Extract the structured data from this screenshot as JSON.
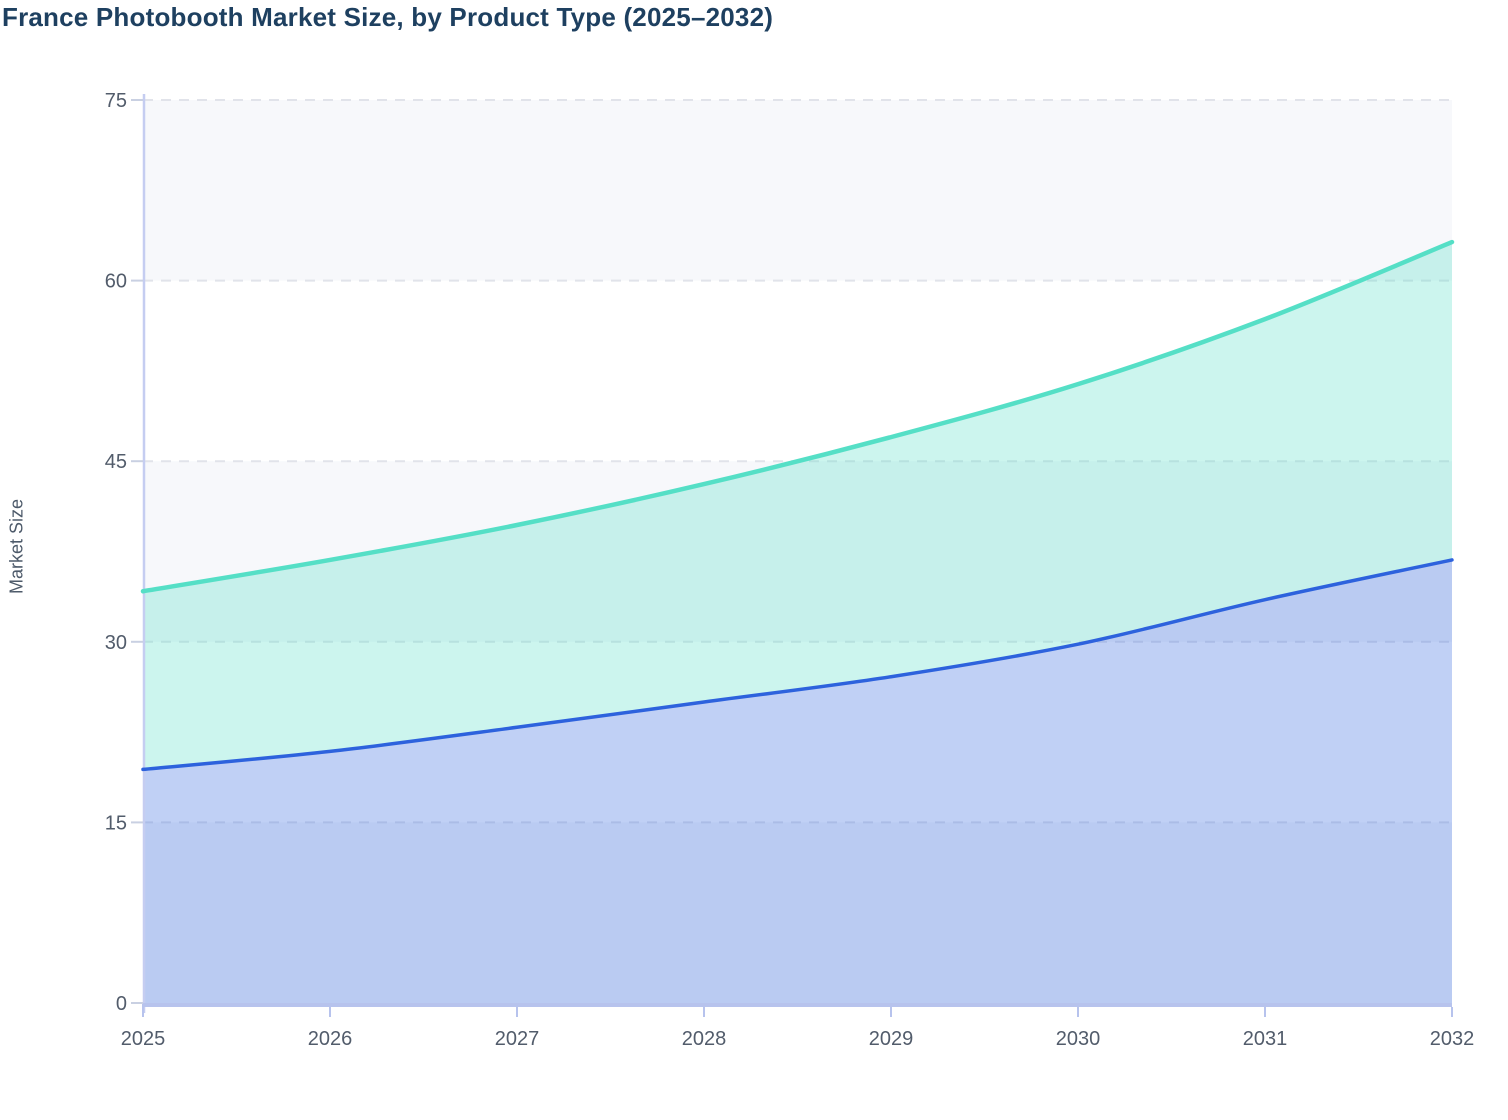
{
  "page": {
    "title": "France Photobooth Market Size, by Product Type (2025–2032)"
  },
  "chart_data": {
    "type": "area",
    "stacked": true,
    "smooth": true,
    "title": "France Photobooth Market Size, by Product Type (2025–2032)",
    "xlabel": "",
    "ylabel": "Market Size",
    "x": [
      2025,
      2026,
      2027,
      2028,
      2029,
      2030,
      2031,
      2032
    ],
    "x_tick_labels": [
      "2025",
      "2026",
      "2027",
      "2028",
      "2029",
      "2030",
      "2031",
      "2032"
    ],
    "y_ticks": [
      0,
      15,
      30,
      45,
      60,
      75
    ],
    "y_tick_labels": [
      "0",
      "15",
      "30",
      "45",
      "60",
      "75"
    ],
    "ylim": [
      0,
      75
    ],
    "legend": "none",
    "grid": "horizontal dashed gridlines, alternating background bands (gray band between 60-75, 30-45, 0-15)",
    "series": [
      {
        "id": "bottom-blue-series",
        "line_color": "#2d62dd",
        "fill_color": "rgba(45,98,221,0.30)",
        "values": [
          19.4,
          20.9,
          22.9,
          25.0,
          27.1,
          29.8,
          33.5,
          36.8
        ]
      },
      {
        "id": "top-teal-series",
        "line_color": "#55dfc6",
        "fill_color": "rgba(85,223,198,0.30)",
        "values": [
          14.8,
          15.9,
          16.8,
          18.1,
          19.9,
          21.6,
          23.3,
          26.4
        ],
        "stacked_totals": [
          34.2,
          36.8,
          39.7,
          43.1,
          47.0,
          51.4,
          56.8,
          63.2
        ]
      }
    ],
    "colors": {
      "title_text": "#1e4060",
      "tick_label_text": "#525c6b",
      "axis_line": "#b7c3ed",
      "y_axis_line": "#c5cdf1",
      "tick_mark": "#c9d0e2",
      "gridline": "#e1e3ea",
      "band_gray": "#f7f8fb",
      "band_white": "#ffffff"
    }
  }
}
